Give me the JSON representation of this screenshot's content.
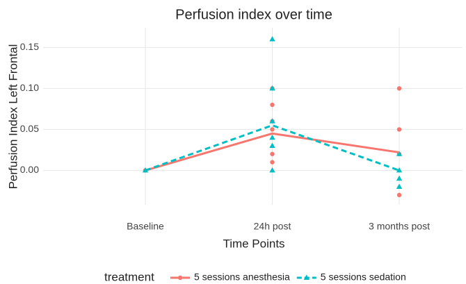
{
  "chart_data": {
    "type": "line",
    "title": "Perfusion index over time",
    "x_label": "Time Points",
    "y_label": "Perfusion Index Left Frontal",
    "legend_title": "treatment",
    "categories": [
      "Baseline",
      "24h post",
      "3 months post"
    ],
    "ylim": [
      -0.042,
      0.174
    ],
    "yticks": [
      {
        "value": 0,
        "label": "0.00"
      },
      {
        "value": 0.05,
        "label": "0.05"
      },
      {
        "value": 0.1,
        "label": "0.10"
      },
      {
        "value": 0.15,
        "label": "0.15"
      }
    ],
    "grid": true,
    "legend_position": "bottom",
    "series": [
      {
        "name": "5 sessions anesthesia",
        "color": "#F8766D",
        "linetype": "solid",
        "shape": "circle",
        "values": [
          0,
          0.045,
          0.022
        ],
        "points": [
          [
            0
          ],
          [
            0.1,
            0.08,
            0.06,
            0.05,
            0.02,
            0.01
          ],
          [
            0.1,
            0.05,
            0.02,
            -0.03
          ]
        ]
      },
      {
        "name": "5 sessions sedation",
        "color": "#00BFC4",
        "linetype": "dashed",
        "shape": "triangle",
        "values": [
          0,
          0.055,
          0
        ],
        "points": [
          [
            0
          ],
          [
            0.16,
            0.1,
            0.06,
            0.04,
            0.03,
            0
          ],
          [
            0.02,
            0,
            -0.01,
            -0.02
          ]
        ]
      }
    ]
  }
}
